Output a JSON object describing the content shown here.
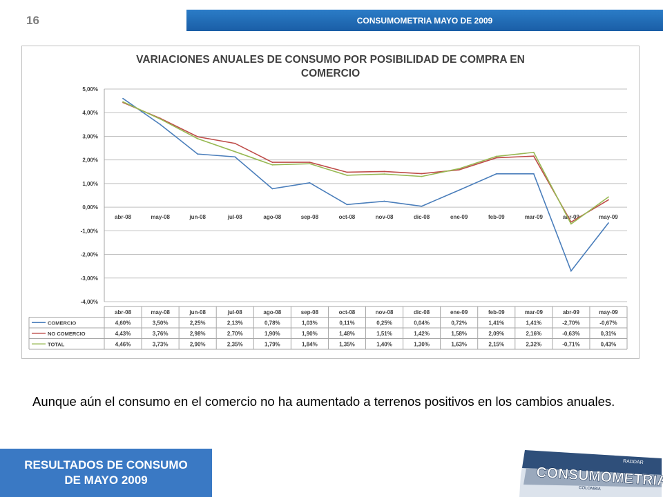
{
  "header": {
    "page_number": "16",
    "title": "CONSUMOMETRIA MAYO DE 2009"
  },
  "chart_data": {
    "type": "line",
    "title_line1": "VARIACIONES ANUALES DE CONSUMO POR POSIBILIDAD DE COMPRA EN",
    "title_line2": "COMERCIO",
    "categories": [
      "abr-08",
      "may-08",
      "jun-08",
      "jul-08",
      "ago-08",
      "sep-08",
      "oct-08",
      "nov-08",
      "dic-08",
      "ene-09",
      "feb-09",
      "mar-09",
      "abr-09",
      "may-09"
    ],
    "yticks": [
      "5,00%",
      "4,00%",
      "3,00%",
      "2,00%",
      "1,00%",
      "0,00%",
      "-1,00%",
      "-2,00%",
      "-3,00%",
      "-4,00%"
    ],
    "ylim": [
      -4,
      5
    ],
    "grid": true,
    "series": [
      {
        "name": "COMERCIO",
        "color": "#4a7ebb",
        "values": [
          4.6,
          3.5,
          2.25,
          2.13,
          0.78,
          1.03,
          0.11,
          0.25,
          0.04,
          0.72,
          1.41,
          1.41,
          -2.7,
          -0.67
        ],
        "labels": [
          "4,60%",
          "3,50%",
          "2,25%",
          "2,13%",
          "0,78%",
          "1,03%",
          "0,11%",
          "0,25%",
          "0,04%",
          "0,72%",
          "1,41%",
          "1,41%",
          "-2,70%",
          "-0,67%"
        ]
      },
      {
        "name": "NO COMERCIO",
        "color": "#be4b48",
        "values": [
          4.43,
          3.76,
          2.98,
          2.7,
          1.9,
          1.9,
          1.48,
          1.51,
          1.42,
          1.58,
          2.09,
          2.16,
          -0.63,
          0.31
        ],
        "labels": [
          "4,43%",
          "3,76%",
          "2,98%",
          "2,70%",
          "1,90%",
          "1,90%",
          "1,48%",
          "1,51%",
          "1,42%",
          "1,58%",
          "2,09%",
          "2,16%",
          "-0,63%",
          "0,31%"
        ]
      },
      {
        "name": "TOTAL",
        "color": "#98b954",
        "values": [
          4.46,
          3.73,
          2.9,
          2.35,
          1.79,
          1.84,
          1.35,
          1.4,
          1.3,
          1.63,
          2.15,
          2.32,
          -0.71,
          0.43
        ],
        "labels": [
          "4,46%",
          "3,73%",
          "2,90%",
          "2,35%",
          "1,79%",
          "1,84%",
          "1,35%",
          "1,40%",
          "1,30%",
          "1,63%",
          "2,15%",
          "2,32%",
          "-0,71%",
          "0,43%"
        ]
      }
    ]
  },
  "caption": "Aunque aún el consumo en el comercio no ha aumentado a terrenos positivos en los cambios anuales.",
  "footer": {
    "line1": "RESULTADOS DE CONSUMO",
    "line2": "DE MAYO 2009"
  },
  "logo": {
    "text": "CONSUMOMETRIA",
    "small": "RADDAR",
    "sub": "COLOMBIA"
  }
}
